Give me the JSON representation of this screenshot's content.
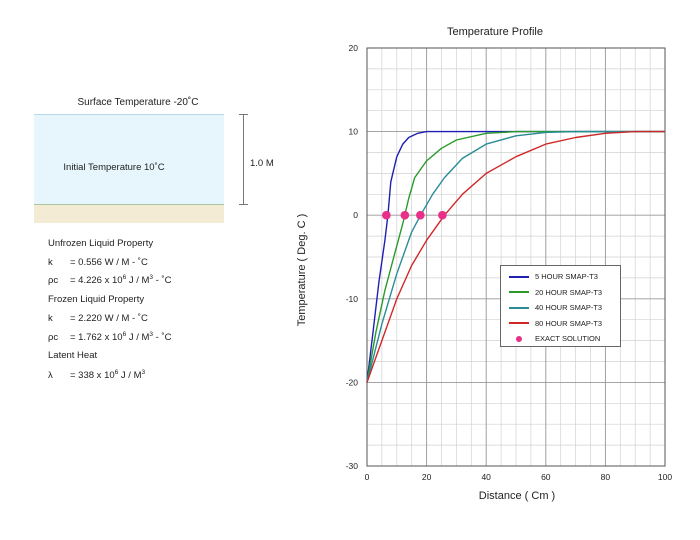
{
  "diagram": {
    "surface_temperature": "Surface Temperature -20˚C",
    "initial_temperature": "Initial Temperature 10˚C",
    "depth": "1.0 M"
  },
  "properties": {
    "unfrozen_title": "Unfrozen Liquid Property",
    "unfrozen_k_symbol": "k",
    "unfrozen_k_value": "= 0.556 W / M - ˚C",
    "unfrozen_pc_symbol": "ρc",
    "unfrozen_pc_value_pre": "= 4.226 x 10",
    "unfrozen_pc_value_exp": "6",
    "unfrozen_pc_value_mid": " J /  M",
    "unfrozen_pc_value_exp2": "3",
    "unfrozen_pc_value_post": " - ˚C",
    "frozen_title": "Frozen Liquid Property",
    "frozen_k_symbol": "k",
    "frozen_k_value": "= 2.220 W / M - ˚C",
    "frozen_pc_symbol": "ρc",
    "frozen_pc_value_pre": "= 1.762 x 10",
    "frozen_pc_value_exp": "6",
    "frozen_pc_value_mid": " J /  M",
    "frozen_pc_value_exp2": "3",
    "frozen_pc_value_post": " - ˚C",
    "latent_title": "Latent Heat",
    "latent_symbol": "λ",
    "latent_value_pre": "= 338 x 10",
    "latent_value_exp": "6",
    "latent_value_mid": " J / M",
    "latent_value_exp2": "3"
  },
  "chart_data": {
    "type": "line",
    "title": "Temperature Profile",
    "xlabel": "Distance ( Cm )",
    "ylabel": "Temperature ( Deg. C )",
    "xlim": [
      0,
      100
    ],
    "ylim": [
      -30,
      20
    ],
    "x_ticks": [
      0,
      20,
      40,
      60,
      80,
      100
    ],
    "y_ticks": [
      -30,
      -20,
      -10,
      0,
      10,
      20
    ],
    "grid": true,
    "legend_position": "center-right",
    "series": [
      {
        "name": "5 HOUR  SMAP-T3",
        "color": "#1f1fb4",
        "points": [
          [
            0,
            -20
          ],
          [
            2,
            -14
          ],
          [
            4,
            -8
          ],
          [
            6,
            -3
          ],
          [
            7,
            0
          ],
          [
            8,
            4
          ],
          [
            10,
            7
          ],
          [
            12,
            8.5
          ],
          [
            14,
            9.3
          ],
          [
            17,
            9.8
          ],
          [
            20,
            10
          ],
          [
            100,
            10
          ]
        ]
      },
      {
        "name": "20 HOUR  SMAP-T3",
        "color": "#2a9a2a",
        "points": [
          [
            0,
            -20
          ],
          [
            3,
            -14
          ],
          [
            6,
            -9
          ],
          [
            9,
            -5
          ],
          [
            12,
            -1
          ],
          [
            14,
            2
          ],
          [
            16,
            4.5
          ],
          [
            20,
            6.5
          ],
          [
            25,
            8
          ],
          [
            30,
            9
          ],
          [
            40,
            9.8
          ],
          [
            50,
            10
          ],
          [
            100,
            10
          ]
        ]
      },
      {
        "name": "40 HOUR  SMAP-T3",
        "color": "#2a8c96",
        "points": [
          [
            0,
            -20
          ],
          [
            5,
            -13
          ],
          [
            10,
            -7
          ],
          [
            15,
            -2
          ],
          [
            18,
            0
          ],
          [
            22,
            2.5
          ],
          [
            26,
            4.5
          ],
          [
            32,
            6.8
          ],
          [
            40,
            8.5
          ],
          [
            50,
            9.5
          ],
          [
            60,
            9.9
          ],
          [
            70,
            10
          ],
          [
            100,
            10
          ]
        ]
      },
      {
        "name": "80 HOUR  SMAP-T3",
        "color": "#d02828",
        "points": [
          [
            0,
            -20
          ],
          [
            5,
            -15
          ],
          [
            10,
            -10
          ],
          [
            15,
            -6
          ],
          [
            20,
            -3
          ],
          [
            26,
            0
          ],
          [
            32,
            2.5
          ],
          [
            40,
            5
          ],
          [
            50,
            7
          ],
          [
            60,
            8.5
          ],
          [
            70,
            9.3
          ],
          [
            80,
            9.8
          ],
          [
            90,
            10
          ],
          [
            100,
            10
          ]
        ]
      }
    ],
    "exact_solution": {
      "name": "EXACT SOLUTION",
      "color": "#e8308a",
      "points": [
        [
          6.5,
          0
        ],
        [
          12.7,
          0
        ],
        [
          17.9,
          0
        ],
        [
          25.3,
          0
        ]
      ]
    }
  }
}
